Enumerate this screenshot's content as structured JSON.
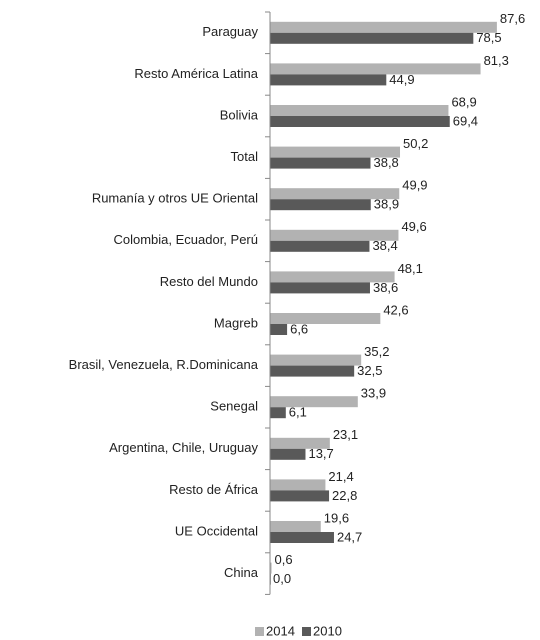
{
  "chart_data": {
    "type": "hbar",
    "categories": [
      "Paraguay",
      "Resto América Latina",
      "Bolivia",
      "Total",
      "Rumanía y otros UE Oriental",
      "Colombia, Ecuador, Perú",
      "Resto del Mundo",
      "Magreb",
      "Brasil, Venezuela, R.Dominicana",
      "Senegal",
      "Argentina, Chile, Uruguay",
      "Resto de África",
      "UE Occidental",
      "China"
    ],
    "series": [
      {
        "name": "2014",
        "color": "#b2b2b2",
        "values": [
          87.6,
          81.3,
          68.9,
          50.2,
          49.9,
          49.6,
          48.1,
          42.6,
          35.2,
          33.9,
          23.1,
          21.4,
          19.6,
          0.6
        ],
        "value_labels": [
          "87,6",
          "81,3",
          "68,9",
          "50,2",
          "49,9",
          "49,6",
          "48,1",
          "42,6",
          "35,2",
          "33,9",
          "23,1",
          "21,4",
          "19,6",
          "0,6"
        ]
      },
      {
        "name": "2010",
        "color": "#595959",
        "values": [
          78.5,
          44.9,
          69.4,
          38.8,
          38.9,
          38.4,
          38.6,
          6.6,
          32.5,
          6.1,
          13.7,
          22.8,
          24.7,
          0.0
        ],
        "value_labels": [
          "78,5",
          "44,9",
          "69,4",
          "38,8",
          "38,9",
          "38,4",
          "38,6",
          "6,6",
          "32,5",
          "6,1",
          "13,7",
          "22,8",
          "24,7",
          "0,0"
        ]
      }
    ],
    "xlim": [
      0,
      100
    ],
    "legend": "bottom"
  }
}
